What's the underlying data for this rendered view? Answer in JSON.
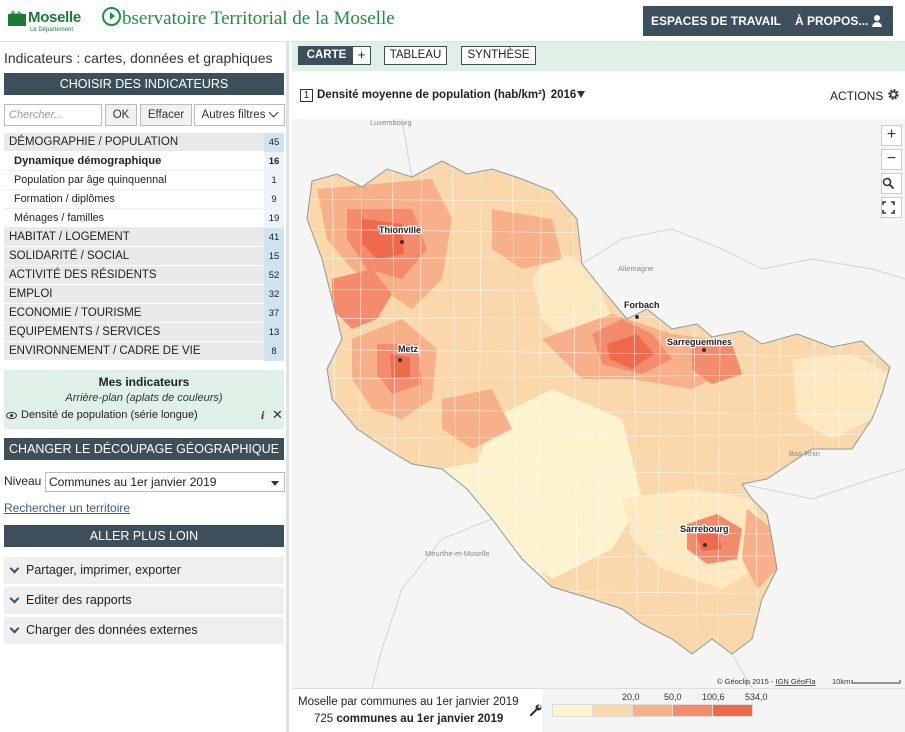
{
  "header": {
    "logo_name": "Moselle",
    "logo_sub": "Le Département",
    "title_rest": "bservatoire Territorial de la Moselle",
    "nav": [
      "ESPACES DE TRAVAIL",
      "À PROPOS..."
    ]
  },
  "left": {
    "breadcrumb": "Indicateurs : cartes, données et graphiques",
    "choose_label": "CHOISIR DES INDICATEURS",
    "search": {
      "placeholder": "Chercher...",
      "ok_label": "OK",
      "clear_label": "Effacer",
      "filters_label": "Autres filtres"
    },
    "categories": [
      {
        "label": "DÉMOGRAPHIE / POPULATION",
        "count": "45"
      },
      {
        "label": "Dynamique démographique",
        "count": "16"
      },
      {
        "label": "Population par âge quinquennal",
        "count": "1"
      },
      {
        "label": "Formation / diplômes",
        "count": "9"
      },
      {
        "label": "Ménages / familles",
        "count": "19"
      },
      {
        "label": "HABITAT / LOGEMENT",
        "count": "41"
      },
      {
        "label": "SOLIDARITÉ / SOCIAL",
        "count": "15"
      },
      {
        "label": "ACTIVITÉ DES RÉSIDENTS",
        "count": "52"
      },
      {
        "label": "EMPLOI",
        "count": "32"
      },
      {
        "label": "ECONOMIE / TOURISME",
        "count": "37"
      },
      {
        "label": "EQUIPEMENTS / SERVICES",
        "count": "13"
      },
      {
        "label": "ENVIRONNEMENT / CADRE DE VIE",
        "count": "8"
      }
    ],
    "mes_indicateurs": {
      "title": "Mes indicateurs",
      "subtitle": "Arrière-plan (aplats de couleurs)",
      "item": "Densité de population (série longue)"
    },
    "decoupage_label": "CHANGER LE DÉCOUPAGE GÉOGRAPHIQUE",
    "niveau_label": "Niveau",
    "niveau_value": "Communes au 1er janvier 2019",
    "rechercher_label": "Rechercher un territoire",
    "aller_label": "ALLER PLUS LOIN",
    "accordions": [
      "Partager, imprimer, exporter",
      "Editer des rapports",
      "Charger des données externes"
    ]
  },
  "right": {
    "tabs": [
      "CARTE",
      "TABLEAU",
      "SYNTHÈSE"
    ],
    "plus_label": "+",
    "indicator_number": "1",
    "indicator_title": "Densité moyenne de population (hab/km²)",
    "year": "2016",
    "actions_label": "ACTIONS",
    "map": {
      "places": [
        "Thionville",
        "Metz",
        "Forbach",
        "Sarreguemines",
        "Sarrebourg"
      ],
      "regions": [
        "Luxembourg",
        "Allemagne",
        "Bas-Rhin",
        "Meurthe-et-Moselle"
      ],
      "credits": "© Géoclip 2015 - ",
      "credits_link": "IGN GéoFla",
      "scale": "10km",
      "zoom_in": "+",
      "zoom_out": "−"
    },
    "footer": {
      "line1": "Moselle par communes au 1er janvier 2019",
      "line2_count": "725",
      "line2_text": "communes au 1er janvier 2019"
    },
    "legend": {
      "thresholds": [
        "20,0",
        "50,0",
        "100,6",
        "534,0"
      ],
      "colors": [
        "#fdf3cf",
        "#fbd8ab",
        "#f8b08a",
        "#f48b6c",
        "#ef6a4c"
      ]
    }
  }
}
